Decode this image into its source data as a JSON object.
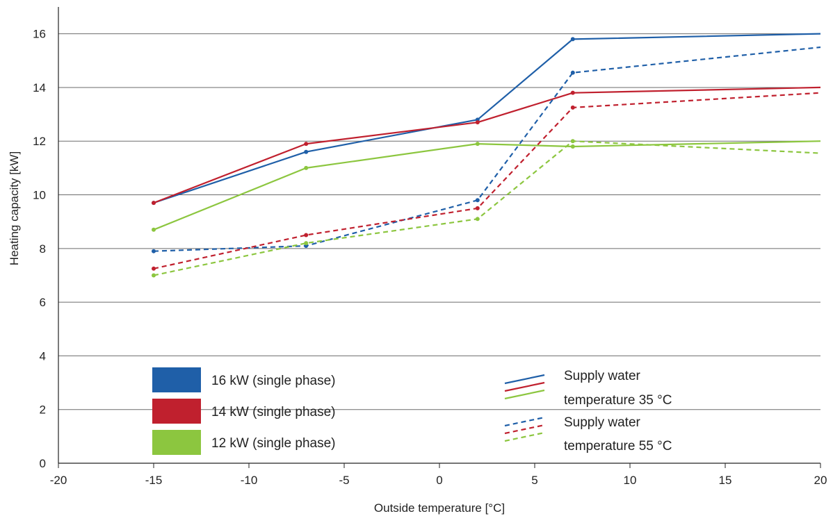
{
  "chart_data": {
    "type": "line",
    "xlabel": "Outside temperature [°C]",
    "ylabel": "Heating capacity [kW]",
    "xlim": [
      -20,
      20
    ],
    "ylim": [
      0,
      17
    ],
    "xticks": [
      -20,
      -15,
      -10,
      -5,
      0,
      5,
      10,
      15,
      20
    ],
    "yticks": [
      0,
      2,
      4,
      6,
      8,
      10,
      12,
      14,
      16
    ],
    "grid": "horizontal",
    "legend_placement": "bottom",
    "series": [
      {
        "key": "s16_35",
        "color": "#1f5fa8",
        "dash": "solid",
        "x": [
          -15,
          -7,
          2,
          7,
          20
        ],
        "y": [
          9.7,
          11.6,
          12.8,
          15.8,
          16.0
        ]
      },
      {
        "key": "s14_35",
        "color": "#c0202e",
        "dash": "solid",
        "x": [
          -15,
          -7,
          2,
          7,
          20
        ],
        "y": [
          9.7,
          11.9,
          12.7,
          13.8,
          14.0
        ]
      },
      {
        "key": "s12_35",
        "color": "#8cc63f",
        "dash": "solid",
        "x": [
          -15,
          -7,
          2,
          7,
          20
        ],
        "y": [
          8.7,
          11.0,
          11.9,
          11.8,
          12.0
        ]
      },
      {
        "key": "s16_55",
        "color": "#1f5fa8",
        "dash": "dashed",
        "x": [
          -15,
          -7,
          2,
          7,
          20
        ],
        "y": [
          7.9,
          8.1,
          9.8,
          14.55,
          15.5
        ]
      },
      {
        "key": "s14_55",
        "color": "#c0202e",
        "dash": "dashed",
        "x": [
          -15,
          -7,
          2,
          7,
          20
        ],
        "y": [
          7.25,
          8.5,
          9.5,
          13.25,
          13.8
        ]
      },
      {
        "key": "s12_55",
        "color": "#8cc63f",
        "dash": "dashed",
        "x": [
          -15,
          -7,
          2,
          7,
          20
        ],
        "y": [
          7.0,
          8.2,
          9.1,
          12.0,
          11.55
        ]
      }
    ],
    "legend_units": [
      {
        "label": "16 kW (single phase)",
        "color": "#1f5fa8"
      },
      {
        "label": "14 kW (single phase)",
        "color": "#c0202e"
      },
      {
        "label": "12 kW (single phase)",
        "color": "#8cc63f"
      }
    ],
    "legend_styles": [
      {
        "line1": "Supply water",
        "line2": "temperature 35 °C",
        "dash": "solid"
      },
      {
        "line1": "Supply water",
        "line2": "temperature 55 °C",
        "dash": "dashed"
      }
    ]
  }
}
